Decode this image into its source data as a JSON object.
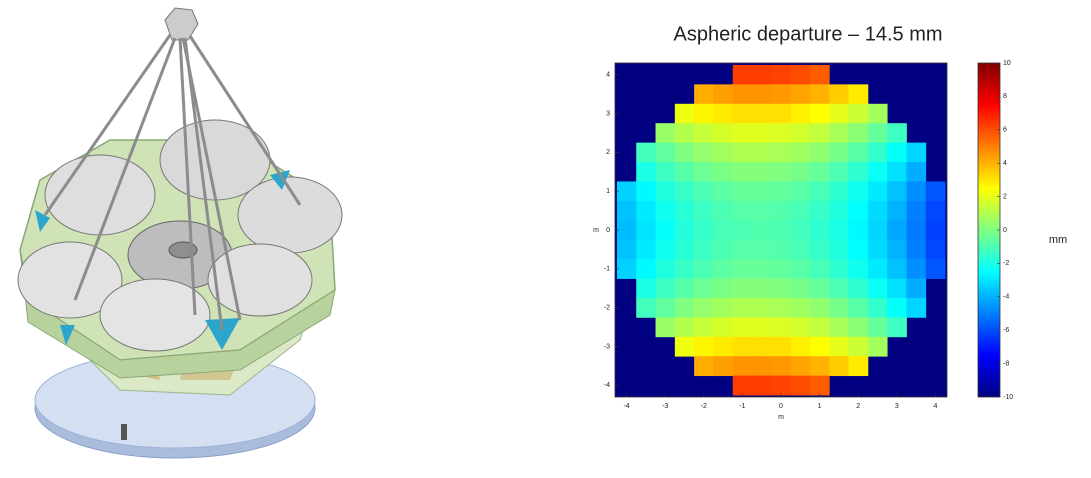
{
  "chart_data": {
    "type": "heatmap",
    "title": "Aspheric departure – 14.5 mm",
    "xlabel": "m",
    "ylabel": "m",
    "colormap": "jet",
    "x": [
      -4,
      -3.5,
      -3,
      -2.5,
      -2,
      -1.5,
      -1,
      -0.5,
      0,
      0.5,
      1,
      1.5,
      2,
      2.5,
      3,
      3.5,
      4
    ],
    "y": [
      4,
      3.5,
      3,
      2.5,
      2,
      1.5,
      1,
      0.5,
      0,
      -0.5,
      -1,
      -1.5,
      -2,
      -2.5,
      -3,
      -3.5,
      -4
    ],
    "values": [
      [
        null,
        null,
        null,
        null,
        null,
        null,
        6.3,
        6.3,
        6.2,
        6.0,
        5.7,
        null,
        null,
        null,
        null,
        null,
        null
      ],
      [
        null,
        null,
        null,
        null,
        4.1,
        4.4,
        4.6,
        4.6,
        4.5,
        4.3,
        4.0,
        3.5,
        2.9,
        null,
        null,
        null,
        null
      ],
      [
        null,
        null,
        null,
        2.2,
        2.7,
        2.9,
        3.1,
        3.1,
        3.1,
        2.8,
        2.5,
        2.0,
        1.5,
        0.7,
        null,
        null,
        null
      ],
      [
        null,
        null,
        0.5,
        1.0,
        1.4,
        1.7,
        1.9,
        1.9,
        1.8,
        1.6,
        1.3,
        0.8,
        0.2,
        -0.5,
        -1.3,
        null,
        null
      ],
      [
        null,
        -1.2,
        -0.6,
        0.0,
        0.4,
        0.7,
        0.9,
        0.9,
        0.8,
        0.6,
        0.3,
        -0.2,
        -0.8,
        -1.5,
        -2.4,
        -3.3,
        null
      ],
      [
        null,
        -2.0,
        -1.3,
        -0.8,
        -0.4,
        -0.1,
        0.1,
        0.1,
        0.0,
        -0.2,
        -0.5,
        -1.0,
        -1.6,
        -2.3,
        -3.1,
        -4.1,
        null
      ],
      [
        -3.4,
        -2.6,
        -1.9,
        -1.4,
        -1.0,
        -0.7,
        -0.5,
        -0.5,
        -0.6,
        -0.8,
        -1.1,
        -1.6,
        -2.2,
        -2.9,
        -3.7,
        -4.7,
        -5.8
      ],
      [
        -3.7,
        -2.9,
        -2.2,
        -1.7,
        -1.3,
        -1.0,
        -0.8,
        -0.8,
        -0.9,
        -1.1,
        -1.4,
        -1.9,
        -2.5,
        -3.2,
        -4.0,
        -5.0,
        -6.1
      ],
      [
        -3.8,
        -3.0,
        -2.4,
        -1.8,
        -1.4,
        -1.1,
        -1.0,
        -0.9,
        -1.0,
        -1.2,
        -1.6,
        -2.0,
        -2.6,
        -3.3,
        -4.2,
        -5.1,
        -6.2
      ],
      [
        -3.7,
        -2.9,
        -2.2,
        -1.7,
        -1.3,
        -1.0,
        -0.8,
        -0.8,
        -0.9,
        -1.1,
        -1.4,
        -1.9,
        -2.5,
        -3.2,
        -4.0,
        -5.0,
        -6.1
      ],
      [
        -3.4,
        -2.6,
        -1.9,
        -1.4,
        -1.0,
        -0.7,
        -0.5,
        -0.5,
        -0.6,
        -0.8,
        -1.1,
        -1.6,
        -2.2,
        -2.9,
        -3.7,
        -4.7,
        -5.8
      ],
      [
        null,
        -2.0,
        -1.3,
        -0.8,
        -0.4,
        -0.1,
        0.1,
        0.1,
        0.0,
        -0.2,
        -0.5,
        -1.0,
        -1.6,
        -2.3,
        -3.1,
        -4.1,
        null
      ],
      [
        null,
        -1.2,
        -0.6,
        0.0,
        0.4,
        0.7,
        0.9,
        0.9,
        0.8,
        0.6,
        0.3,
        -0.2,
        -0.8,
        -1.5,
        -2.4,
        -3.3,
        null
      ],
      [
        null,
        null,
        0.5,
        1.0,
        1.4,
        1.7,
        1.9,
        1.9,
        1.8,
        1.6,
        1.3,
        0.8,
        0.2,
        -0.5,
        -1.3,
        null,
        null
      ],
      [
        null,
        null,
        null,
        2.2,
        2.7,
        2.9,
        3.1,
        3.1,
        3.1,
        2.8,
        2.5,
        2.0,
        1.5,
        0.7,
        null,
        null,
        null
      ],
      [
        null,
        null,
        null,
        null,
        4.1,
        4.4,
        4.6,
        4.6,
        4.5,
        4.3,
        4.0,
        3.5,
        2.9,
        null,
        null,
        null,
        null
      ],
      [
        null,
        null,
        null,
        null,
        null,
        null,
        6.3,
        6.3,
        6.2,
        6.0,
        5.7,
        null,
        null,
        null,
        null,
        null,
        null
      ]
    ],
    "xlim": [
      -4.3,
      4.3
    ],
    "ylim": [
      -4.3,
      4.3
    ],
    "xticks": [
      -4,
      -3,
      -2,
      -1,
      0,
      1,
      2,
      3,
      4
    ],
    "yticks": [
      -4,
      -3,
      -2,
      -1,
      0,
      1,
      2,
      3,
      4
    ],
    "clim": [
      -10,
      10
    ],
    "cticks": [
      -10,
      -8,
      -6,
      -4,
      -2,
      0,
      2,
      4,
      6,
      8,
      10
    ],
    "colorbar_label": "mm"
  }
}
